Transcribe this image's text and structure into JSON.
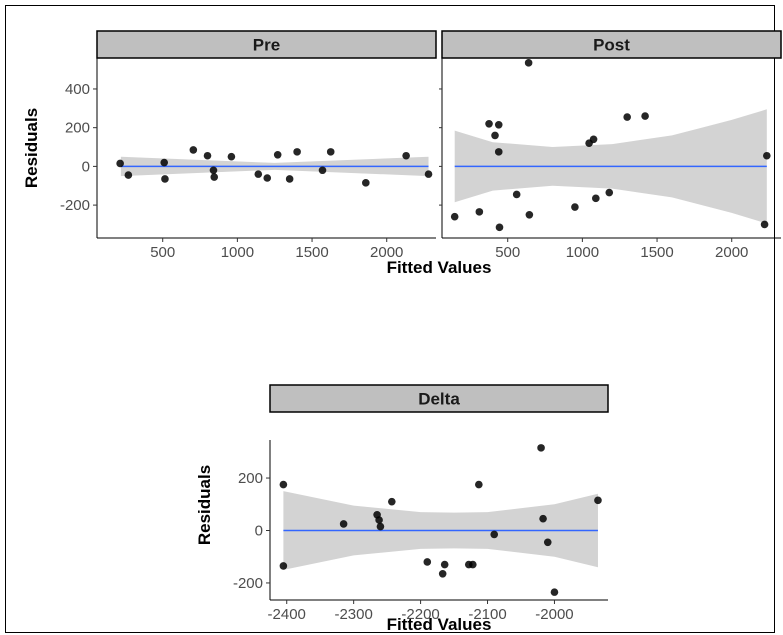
{
  "colors": {
    "background": "#ffffff",
    "strip_fill": "#bfbfbf",
    "ribbon": "#d3d3d3",
    "fit_line": "#3366ff",
    "point": "#000000"
  },
  "chart_data": [
    {
      "type": "scatter",
      "facet": "Pre",
      "xlabel": "Fitted Values",
      "ylabel": "Residuals",
      "xlim": [
        60,
        2330
      ],
      "ylim": [
        -370,
        560
      ],
      "x_ticks": [
        500,
        1000,
        1500,
        2000
      ],
      "y_ticks": [
        -200,
        0,
        200,
        400
      ],
      "x_tick_labels": [
        "500",
        "1000",
        "1500",
        "2000"
      ],
      "y_tick_labels": [
        "-200",
        "0",
        "200",
        "400"
      ],
      "fit": {
        "type": "linear",
        "intercept": 0,
        "slope": 0
      },
      "band": {
        "x": [
          220,
          1250,
          2280
        ],
        "upper": [
          50,
          18,
          50
        ],
        "lower": [
          -50,
          -18,
          -50
        ]
      },
      "points": [
        {
          "x": 215,
          "y": 15
        },
        {
          "x": 270,
          "y": -45
        },
        {
          "x": 510,
          "y": 20
        },
        {
          "x": 515,
          "y": -65
        },
        {
          "x": 705,
          "y": 85
        },
        {
          "x": 800,
          "y": 55
        },
        {
          "x": 840,
          "y": -20
        },
        {
          "x": 845,
          "y": -55
        },
        {
          "x": 960,
          "y": 50
        },
        {
          "x": 1140,
          "y": -40
        },
        {
          "x": 1200,
          "y": -60
        },
        {
          "x": 1270,
          "y": 60
        },
        {
          "x": 1350,
          "y": -65
        },
        {
          "x": 1400,
          "y": 75
        },
        {
          "x": 1570,
          "y": -20
        },
        {
          "x": 1625,
          "y": 75
        },
        {
          "x": 1860,
          "y": -85
        },
        {
          "x": 2130,
          "y": 55
        },
        {
          "x": 2280,
          "y": -40
        }
      ]
    },
    {
      "type": "scatter",
      "facet": "Post",
      "xlabel": "Fitted Values",
      "ylabel": "Residuals",
      "xlim": [
        60,
        2330
      ],
      "ylim": [
        -370,
        560
      ],
      "x_ticks": [
        500,
        1000,
        1500,
        2000
      ],
      "y_ticks": [
        -200,
        0,
        200,
        400
      ],
      "x_tick_labels": [
        "500",
        "1000",
        "1500",
        "2000"
      ],
      "y_tick_labels": [
        "-200",
        "0",
        "200",
        "400"
      ],
      "fit": {
        "type": "linear",
        "intercept": 0,
        "slope": 0
      },
      "band": {
        "x": [
          145,
          400,
          800,
          1200,
          1600,
          2000,
          2235
        ],
        "upper": [
          185,
          125,
          100,
          115,
          160,
          240,
          295
        ],
        "lower": [
          -185,
          -125,
          -100,
          -115,
          -160,
          -240,
          -295
        ]
      },
      "points": [
        {
          "x": 145,
          "y": -260
        },
        {
          "x": 310,
          "y": -235
        },
        {
          "x": 375,
          "y": 220
        },
        {
          "x": 415,
          "y": 160
        },
        {
          "x": 440,
          "y": 215
        },
        {
          "x": 440,
          "y": 75
        },
        {
          "x": 445,
          "y": -315
        },
        {
          "x": 560,
          "y": -145
        },
        {
          "x": 640,
          "y": 535
        },
        {
          "x": 645,
          "y": -250
        },
        {
          "x": 950,
          "y": -210
        },
        {
          "x": 1045,
          "y": 120
        },
        {
          "x": 1075,
          "y": 140
        },
        {
          "x": 1090,
          "y": -165
        },
        {
          "x": 1180,
          "y": -135
        },
        {
          "x": 1300,
          "y": 255
        },
        {
          "x": 1420,
          "y": 260
        },
        {
          "x": 2220,
          "y": -300
        },
        {
          "x": 2235,
          "y": 55
        }
      ]
    },
    {
      "type": "scatter",
      "facet": "Delta",
      "xlabel": "Fitted Values",
      "ylabel": "Residuals",
      "xlim": [
        -2425,
        -1920
      ],
      "ylim": [
        -265,
        345
      ],
      "x_ticks": [
        -2400,
        -2300,
        -2200,
        -2100,
        -2000
      ],
      "y_ticks": [
        -200,
        0,
        200
      ],
      "x_tick_labels": [
        "-2400",
        "-2300",
        "-2200",
        "-2100",
        "-2000"
      ],
      "y_tick_labels": [
        "-200",
        "0",
        "200"
      ],
      "fit": {
        "type": "linear",
        "intercept": 0,
        "slope": 0
      },
      "band": {
        "x": [
          -2405,
          -2300,
          -2200,
          -2150,
          -2100,
          -2000,
          -1935
        ],
        "upper": [
          150,
          95,
          70,
          68,
          70,
          100,
          140
        ],
        "lower": [
          -150,
          -95,
          -70,
          -68,
          -70,
          -100,
          -140
        ]
      },
      "points": [
        {
          "x": -2405,
          "y": 175
        },
        {
          "x": -2405,
          "y": -135
        },
        {
          "x": -2315,
          "y": 25
        },
        {
          "x": -2265,
          "y": 60
        },
        {
          "x": -2262,
          "y": 40
        },
        {
          "x": -2260,
          "y": 15
        },
        {
          "x": -2243,
          "y": 110
        },
        {
          "x": -2190,
          "y": -120
        },
        {
          "x": -2167,
          "y": -165
        },
        {
          "x": -2164,
          "y": -130
        },
        {
          "x": -2128,
          "y": -130
        },
        {
          "x": -2122,
          "y": -130
        },
        {
          "x": -2113,
          "y": 175
        },
        {
          "x": -2090,
          "y": -15
        },
        {
          "x": -2020,
          "y": 315
        },
        {
          "x": -2017,
          "y": 45
        },
        {
          "x": -2010,
          "y": -45
        },
        {
          "x": -2000,
          "y": -235
        },
        {
          "x": -1935,
          "y": 115
        }
      ]
    }
  ]
}
